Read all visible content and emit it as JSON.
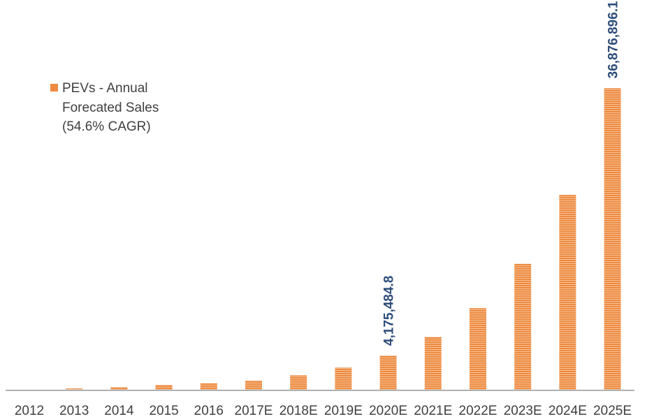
{
  "chart_data": {
    "type": "bar",
    "categories": [
      "2012",
      "2013",
      "2014",
      "2015",
      "2016",
      "2017E",
      "2018E",
      "2019E",
      "2020E",
      "2021E",
      "2022E",
      "2023E",
      "2024E",
      "2025E"
    ],
    "series": [
      {
        "name": "PEVs - Annual Forecated Sales (54.6% CAGR)",
        "values": [
          0,
          150000,
          300000,
          600000,
          780000,
          1120000,
          1750000,
          2700000,
          4175484.8,
          6450000,
          9970000,
          15410000,
          23830000,
          36876896.1
        ]
      }
    ],
    "data_labels": [
      {
        "category": "2020E",
        "text": "4,175,484.8"
      },
      {
        "category": "2025E",
        "text": "36,876,896.1"
      }
    ],
    "legend": {
      "lines": [
        "PEVs - Annual",
        "Forecated Sales",
        "(54.6% CAGR)"
      ],
      "placement": "top-left"
    },
    "ylim": [
      0,
      37000000
    ],
    "grid": false,
    "colors": {
      "bar": "#ed8a3f",
      "bar_stripe": "#f6c39b",
      "label": "#2e4d7a",
      "axis": "#b0b0b0",
      "tick_text": "#404040"
    }
  }
}
